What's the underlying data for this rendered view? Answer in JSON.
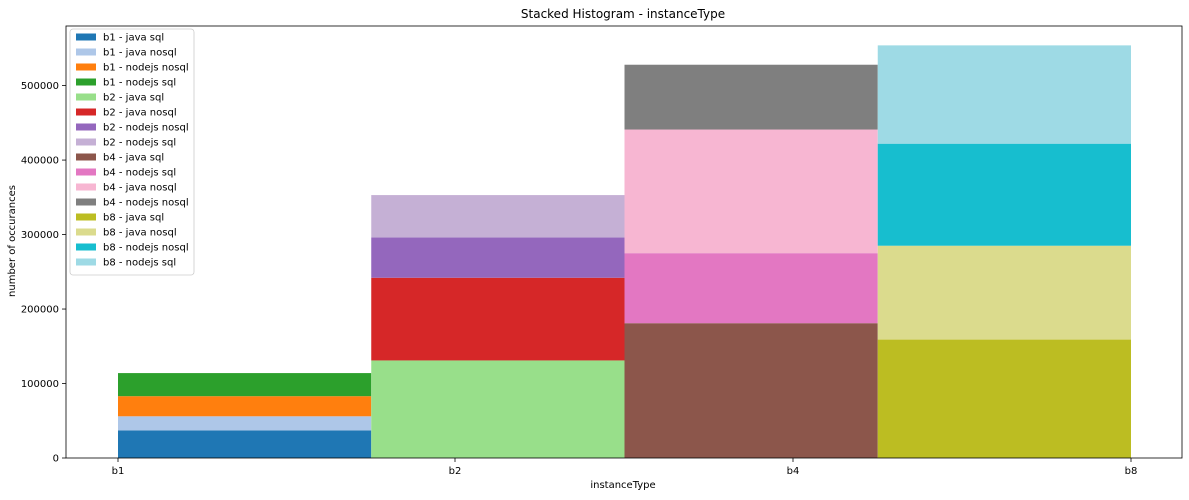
{
  "chart_data": {
    "type": "bar",
    "stacked": true,
    "title": "Stacked Histogram - instanceType",
    "xlabel": "instanceType",
    "ylabel": "number of occurances",
    "ylim": [
      0,
      580000
    ],
    "yticks": [
      0,
      100000,
      200000,
      300000,
      400000,
      500000
    ],
    "ytick_labels": [
      "0",
      "100000",
      "200000",
      "300000",
      "400000",
      "500000"
    ],
    "xticks": [
      "b1",
      "b2",
      "b4",
      "b8"
    ],
    "grid": false,
    "legend_position": "top-left",
    "bins": [
      {
        "label": "b1",
        "segments": [
          "b1 - java sql",
          "b1 - java nosql",
          "b1 - nodejs nosql",
          "b1 - nodejs sql"
        ]
      },
      {
        "label": "b2",
        "segments": [
          "b2 - java sql",
          "b2 - java nosql",
          "b2 - nodejs nosql",
          "b2 - nodejs sql"
        ]
      },
      {
        "label": "b4",
        "segments": [
          "b4 - java sql",
          "b4 - nodejs sql",
          "b4 - java nosql",
          "b4 - nodejs nosql"
        ]
      },
      {
        "label": "b8",
        "segments": [
          "b8 - java sql",
          "b8 - java nosql",
          "b8 - nodejs nosql",
          "b8 - nodejs sql"
        ]
      }
    ],
    "series": [
      {
        "name": "b1 - java sql",
        "color": "#1f77b4",
        "value": 37000
      },
      {
        "name": "b1 - java nosql",
        "color": "#aec7e8",
        "value": 19000
      },
      {
        "name": "b1 - nodejs nosql",
        "color": "#ff7f0e",
        "value": 27000
      },
      {
        "name": "b1 - nodejs sql",
        "color": "#2ca02c",
        "value": 31000
      },
      {
        "name": "b2 - java sql",
        "color": "#98df8a",
        "value": 131000
      },
      {
        "name": "b2 - java nosql",
        "color": "#d62728",
        "value": 111000
      },
      {
        "name": "b2 - nodejs nosql",
        "color": "#9467bd",
        "value": 54000
      },
      {
        "name": "b2 - nodejs sql",
        "color": "#c5b0d5",
        "value": 57000
      },
      {
        "name": "b4 - java sql",
        "color": "#8c564b",
        "value": 181000
      },
      {
        "name": "b4 - nodejs sql",
        "color": "#e377c2",
        "value": 94000
      },
      {
        "name": "b4 - java nosql",
        "color": "#f7b6d2",
        "value": 166000
      },
      {
        "name": "b4 - nodejs nosql",
        "color": "#7f7f7f",
        "value": 87000
      },
      {
        "name": "b8 - java sql",
        "color": "#bcbd22",
        "value": 159000
      },
      {
        "name": "b8 - java nosql",
        "color": "#dbdb8d",
        "value": 126000
      },
      {
        "name": "b8 - nodejs nosql",
        "color": "#17becf",
        "value": 137000
      },
      {
        "name": "b8 - nodejs sql",
        "color": "#9edae5",
        "value": 132000
      }
    ],
    "legend_order": [
      "b1 - java sql",
      "b1 - java nosql",
      "b1 - nodejs nosql",
      "b1 - nodejs sql",
      "b2 - java sql",
      "b2 - java nosql",
      "b2 - nodejs nosql",
      "b2 - nodejs sql",
      "b4 - java sql",
      "b4 - nodejs sql",
      "b4 - java nosql",
      "b4 - nodejs nosql",
      "b8 - java sql",
      "b8 - java nosql",
      "b8 - nodejs nosql",
      "b8 - nodejs sql"
    ]
  }
}
